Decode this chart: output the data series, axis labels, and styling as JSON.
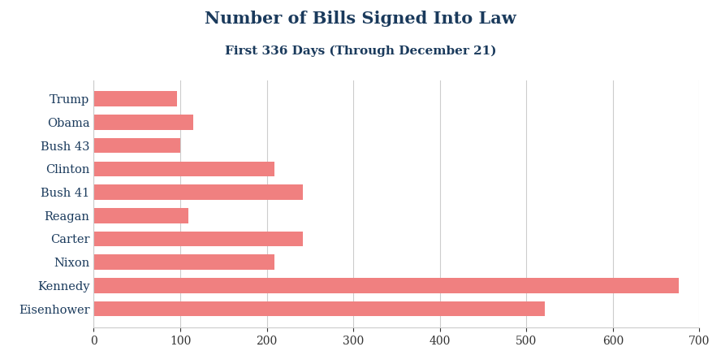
{
  "title": "Number of Bills Signed Into Law",
  "subtitle": "First 336 Days (Through December 21)",
  "categories": [
    "Eisenhower",
    "Kennedy",
    "Nixon",
    "Carter",
    "Reagan",
    "Bush 41",
    "Clinton",
    "Bush 43",
    "Obama",
    "Trump"
  ],
  "values": [
    521,
    676,
    209,
    242,
    109,
    242,
    209,
    100,
    115,
    96
  ],
  "bar_color": "#F08080",
  "title_color": "#1a3a5c",
  "subtitle_color": "#1a3a5c",
  "label_color": "#1a3a5c",
  "tick_color": "#333333",
  "xlim": [
    0,
    700
  ],
  "xticks": [
    0,
    100,
    200,
    300,
    400,
    500,
    600,
    700
  ],
  "grid_color": "#cccccc",
  "background_color": "#ffffff",
  "title_fontsize": 15,
  "subtitle_fontsize": 11,
  "label_fontsize": 10.5,
  "tick_fontsize": 10
}
